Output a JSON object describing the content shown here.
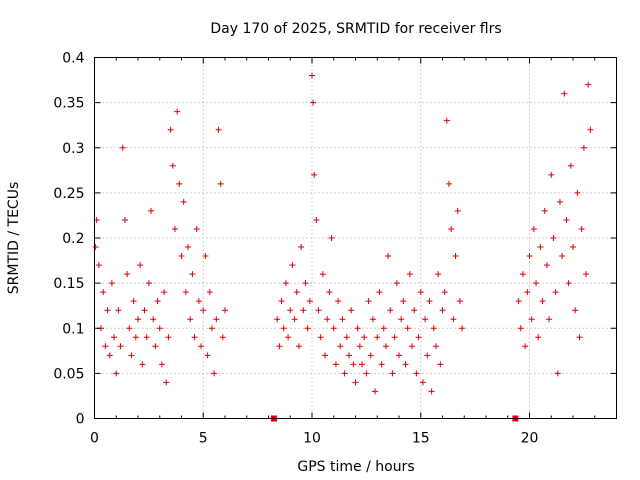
{
  "chart_data": {
    "type": "scatter",
    "title": "Day 170 of 2025, SRMTID for receiver flrs",
    "xlabel": "GPS time / hours",
    "ylabel": "SRMTID / TECUs",
    "xlim": [
      0,
      24
    ],
    "ylim": [
      0,
      0.4
    ],
    "x_ticks": [
      "0",
      "5",
      "10",
      "15",
      "20"
    ],
    "y_ticks": [
      "0",
      "0.05",
      "0.1",
      "0.15",
      "0.2",
      "0.25",
      "0.3",
      "0.35",
      "0.4"
    ],
    "grid": true,
    "marker": "plus",
    "color": "#e00000",
    "data_gaps_hours": [
      [
        8.1,
        8.4
      ],
      [
        19.2,
        19.5
      ]
    ],
    "series": [
      {
        "x": [
          0.05,
          0.1,
          0.2,
          0.3,
          0.4,
          0.5,
          0.6,
          0.7,
          0.8,
          0.9,
          1.0,
          1.1,
          1.2,
          1.3,
          1.4,
          1.5,
          1.6,
          1.7,
          1.8,
          1.9,
          2.0,
          2.1,
          2.2,
          2.3,
          2.4,
          2.5,
          2.6,
          2.7,
          2.8,
          2.9,
          3.0,
          3.1,
          3.2,
          3.3,
          3.4,
          3.5,
          3.6,
          3.7,
          3.8,
          3.9,
          4.0,
          4.1,
          4.2,
          4.3,
          4.4,
          4.5,
          4.6,
          4.7,
          4.8,
          4.9,
          5.0,
          5.1,
          5.2,
          5.3,
          5.4,
          5.5,
          5.6,
          5.7,
          5.8,
          5.9,
          6.0
        ],
        "y": [
          0.19,
          0.22,
          0.17,
          0.1,
          0.14,
          0.08,
          0.12,
          0.07,
          0.15,
          0.09,
          0.05,
          0.12,
          0.08,
          0.3,
          0.22,
          0.16,
          0.1,
          0.07,
          0.13,
          0.09,
          0.11,
          0.17,
          0.06,
          0.12,
          0.09,
          0.15,
          0.23,
          0.11,
          0.08,
          0.13,
          0.1,
          0.06,
          0.14,
          0.04,
          0.09,
          0.32,
          0.28,
          0.21,
          0.34,
          0.26,
          0.18,
          0.24,
          0.14,
          0.19,
          0.11,
          0.16,
          0.09,
          0.21,
          0.13,
          0.08,
          0.12,
          0.18,
          0.07,
          0.14,
          0.1,
          0.05,
          0.11,
          0.32,
          0.26,
          0.09,
          0.12
        ]
      },
      {
        "x": [
          8.4,
          8.5,
          8.6,
          8.7,
          8.8,
          8.9,
          9.0,
          9.1,
          9.2,
          9.3,
          9.4,
          9.5,
          9.6,
          9.7,
          9.8,
          9.9,
          10.0,
          10.05,
          10.1,
          10.2,
          10.3,
          10.4,
          10.5,
          10.6,
          10.7,
          10.8,
          10.9,
          11.0,
          11.1,
          11.2,
          11.3,
          11.4,
          11.5,
          11.6,
          11.7,
          11.8,
          11.9,
          12.0,
          12.1,
          12.2,
          12.3,
          12.4,
          12.5,
          12.6,
          12.7,
          12.8,
          12.9,
          13.0,
          13.1,
          13.2,
          13.3,
          13.4,
          13.5,
          13.6,
          13.7,
          13.8,
          13.9,
          14.0,
          14.1,
          14.2,
          14.3,
          14.4,
          14.5,
          14.6,
          14.7,
          14.8,
          14.9,
          15.0,
          15.1,
          15.2,
          15.3,
          15.4,
          15.5,
          15.6,
          15.7,
          15.8,
          15.9,
          16.0,
          16.1,
          16.2,
          16.3,
          16.4,
          16.5,
          16.6,
          16.7,
          16.8,
          16.9
        ],
        "y": [
          0.11,
          0.08,
          0.13,
          0.1,
          0.15,
          0.09,
          0.12,
          0.17,
          0.11,
          0.14,
          0.08,
          0.19,
          0.12,
          0.15,
          0.1,
          0.13,
          0.38,
          0.35,
          0.27,
          0.22,
          0.12,
          0.09,
          0.16,
          0.07,
          0.11,
          0.14,
          0.2,
          0.1,
          0.06,
          0.13,
          0.08,
          0.11,
          0.05,
          0.09,
          0.07,
          0.12,
          0.06,
          0.04,
          0.1,
          0.08,
          0.06,
          0.09,
          0.05,
          0.13,
          0.07,
          0.11,
          0.03,
          0.09,
          0.14,
          0.06,
          0.1,
          0.08,
          0.18,
          0.12,
          0.05,
          0.09,
          0.15,
          0.07,
          0.11,
          0.13,
          0.06,
          0.1,
          0.16,
          0.08,
          0.12,
          0.05,
          0.09,
          0.14,
          0.04,
          0.11,
          0.07,
          0.13,
          0.03,
          0.1,
          0.08,
          0.16,
          0.06,
          0.12,
          0.14,
          0.33,
          0.26,
          0.21,
          0.11,
          0.18,
          0.23,
          0.13,
          0.1
        ]
      },
      {
        "x": [
          19.5,
          19.6,
          19.7,
          19.8,
          19.9,
          20.0,
          20.1,
          20.2,
          20.3,
          20.4,
          20.5,
          20.6,
          20.7,
          20.8,
          20.9,
          21.0,
          21.1,
          21.2,
          21.3,
          21.4,
          21.5,
          21.6,
          21.7,
          21.8,
          21.9,
          22.0,
          22.1,
          22.2,
          22.3,
          22.4,
          22.5,
          22.6,
          22.7,
          22.8
        ],
        "y": [
          0.13,
          0.1,
          0.16,
          0.08,
          0.14,
          0.18,
          0.11,
          0.21,
          0.15,
          0.09,
          0.19,
          0.13,
          0.23,
          0.17,
          0.11,
          0.27,
          0.2,
          0.14,
          0.05,
          0.24,
          0.18,
          0.36,
          0.22,
          0.15,
          0.28,
          0.19,
          0.12,
          0.25,
          0.09,
          0.21,
          0.3,
          0.16,
          0.37,
          0.32
        ]
      }
    ]
  }
}
